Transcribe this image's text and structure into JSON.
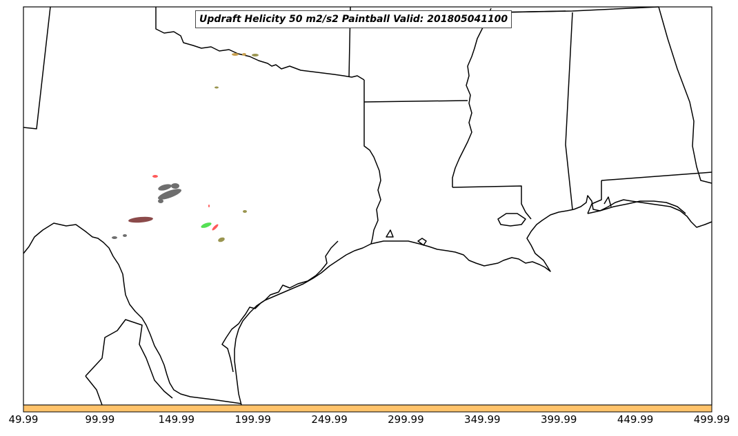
{
  "title": "Updraft Helicity 50 m2/s2 Paintball Valid: 201805041100",
  "colorbar": {
    "color": "#ffc36b",
    "ticks": [
      "49.99",
      "99.99",
      "149.99",
      "199.99",
      "249.99",
      "299.99",
      "349.99",
      "399.99",
      "449.99",
      "499.99"
    ]
  },
  "colors": {
    "coastline": "#000000",
    "background": "#ffffff",
    "paint_gray": "#6e6e6e",
    "paint_red": "#ff5a5a",
    "paint_green": "#55e055",
    "paint_olive": "#9a9550",
    "paint_maroon": "#8b4a4a",
    "paint_tan": "#c8a050"
  }
}
